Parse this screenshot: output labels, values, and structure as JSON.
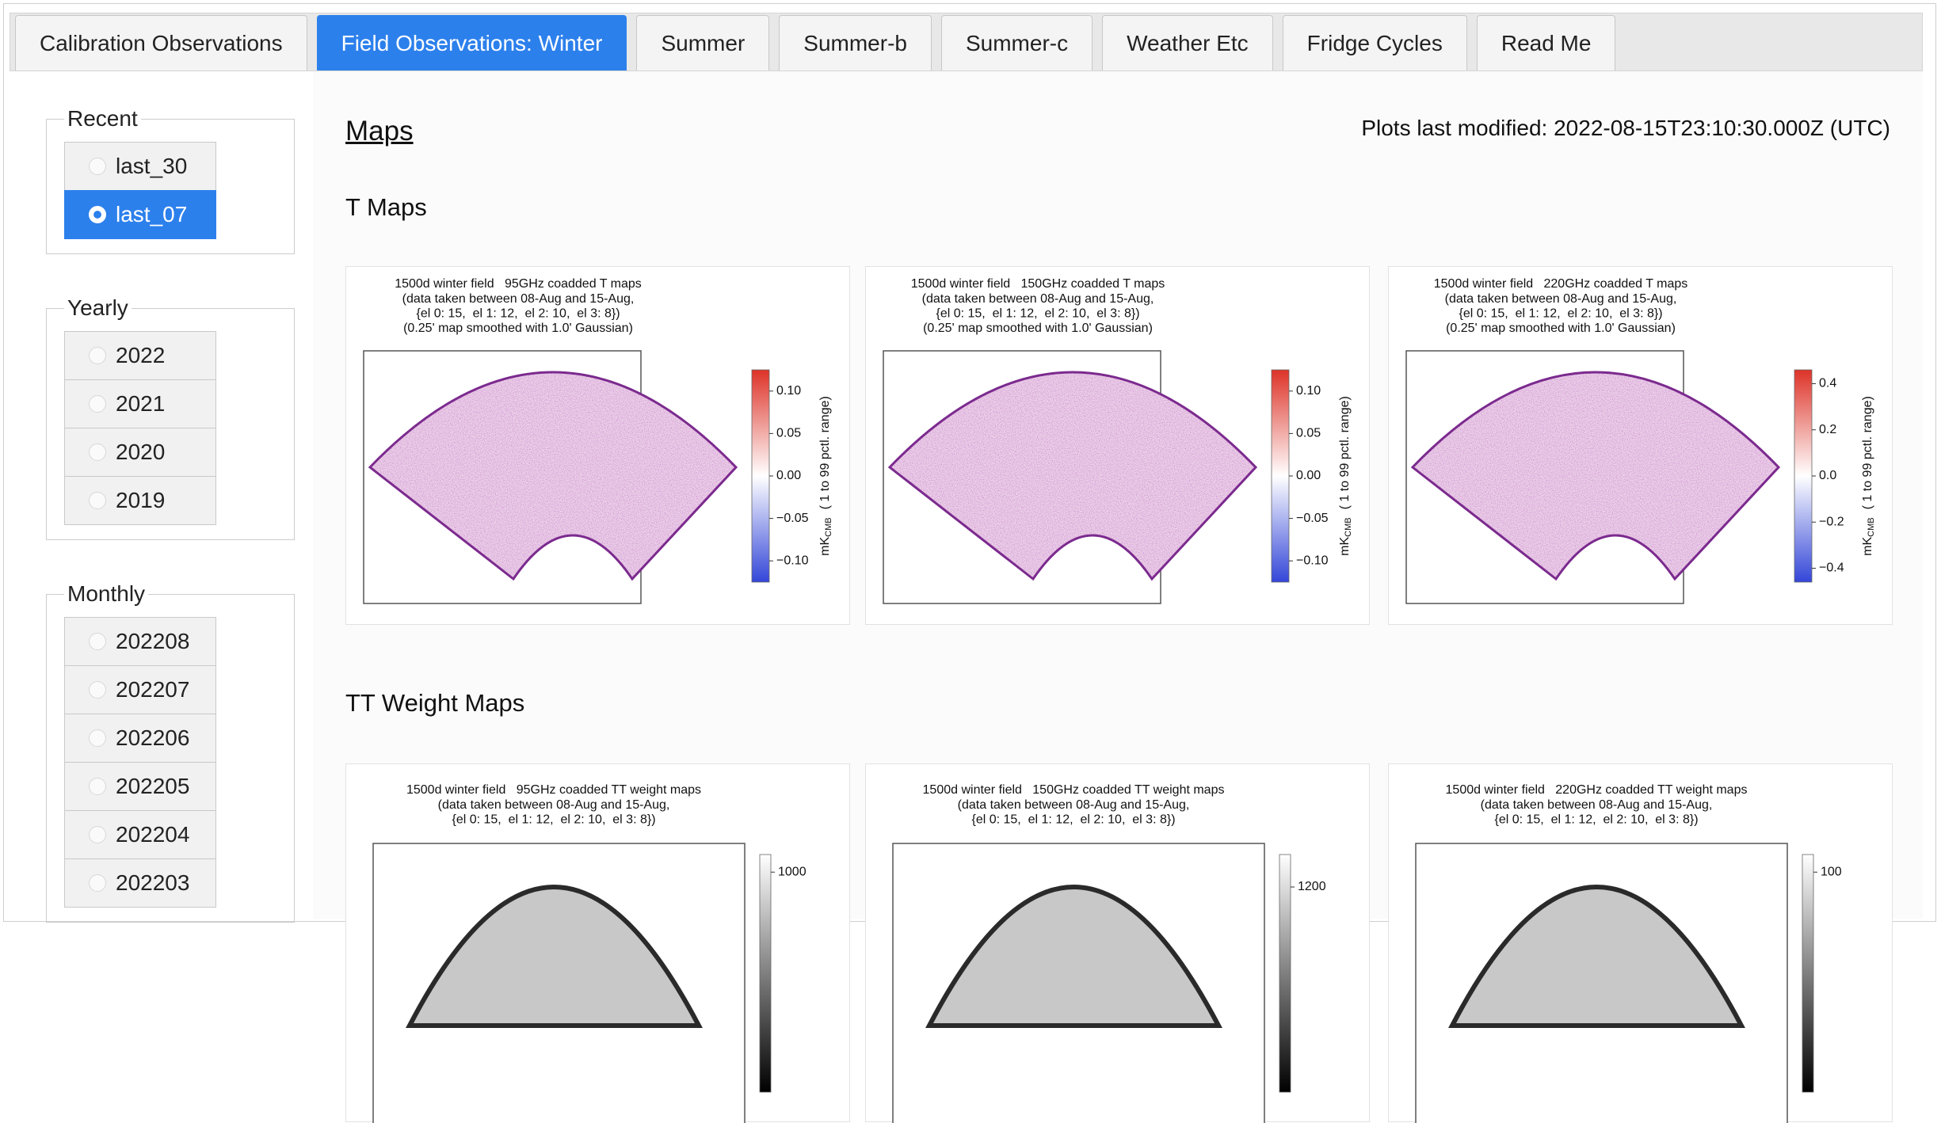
{
  "tabs": {
    "items": [
      "Calibration Observations",
      "Field Observations: Winter",
      "Summer",
      "Summer-b",
      "Summer-c",
      "Weather Etc",
      "Fridge Cycles",
      "Read Me"
    ],
    "active": 1
  },
  "sidebar": {
    "groups": [
      {
        "legend": "Recent",
        "options": [
          "last_30",
          "last_07"
        ],
        "selected": 1
      },
      {
        "legend": "Yearly",
        "options": [
          "2022",
          "2021",
          "2020",
          "2019"
        ]
      },
      {
        "legend": "Monthly",
        "options": [
          "202208",
          "202207",
          "202206",
          "202205",
          "202204",
          "202203"
        ]
      }
    ]
  },
  "main": {
    "title": "Maps",
    "modified": "Plots last modified: 2022-08-15T23:10:30.000Z (UTC)",
    "sections": [
      {
        "heading": "T Maps",
        "kind": "map",
        "plots": [
          {
            "title": [
              "1500d winter field   95GHz coadded T maps",
              "(data taken between 08-Aug and 15-Aug,",
              "{el 0: 15,  el 1: 12,  el 2: 10,  el 3: 8})",
              "(0.25' map smoothed with 1.0' Gaussian)"
            ],
            "colorbar": {
              "clim": [
                -0.125,
                0.125
              ],
              "colors": [
                "#3346d8",
                "#ffffff",
                "#dd3328"
              ],
              "ticks": [
                {
                  "value": 0.1,
                  "label": "0.10"
                },
                {
                  "value": 0.05,
                  "label": "0.05"
                },
                {
                  "value": 0,
                  "label": "0.00"
                },
                {
                  "value": -0.05,
                  "label": "−0.05"
                },
                {
                  "value": -0.1,
                  "label": "−0.10"
                }
              ],
              "label": {
                "unit": "mK",
                "subscript": "CMB",
                "text": "( 1 to 99 pctl. range)"
              }
            }
          },
          {
            "title": [
              "1500d winter field   150GHz coadded T maps",
              "(data taken between 08-Aug and 15-Aug,",
              "{el 0: 15,  el 1: 12,  el 2: 10,  el 3: 8})",
              "(0.25' map smoothed with 1.0' Gaussian)"
            ],
            "colorbar": {
              "clim": [
                -0.125,
                0.125
              ],
              "colors": [
                "#3346d8",
                "#ffffff",
                "#dd3328"
              ],
              "ticks": [
                {
                  "value": 0.1,
                  "label": "0.10"
                },
                {
                  "value": 0.05,
                  "label": "0.05"
                },
                {
                  "value": 0,
                  "label": "0.00"
                },
                {
                  "value": -0.05,
                  "label": "−0.05"
                },
                {
                  "value": -0.1,
                  "label": "−0.10"
                }
              ],
              "label": {
                "unit": "mK",
                "subscript": "CMB",
                "text": "( 1 to 99 pctl. range)"
              }
            }
          },
          {
            "title": [
              "1500d winter field   220GHz coadded T maps",
              "(data taken between 08-Aug and 15-Aug,",
              "{el 0: 15,  el 1: 12,  el 2: 10,  el 3: 8})",
              "(0.25' map smoothed with 1.0' Gaussian)"
            ],
            "colorbar": {
              "clim": [
                -0.46,
                0.46
              ],
              "colors": [
                "#3346d8",
                "#ffffff",
                "#dd3328"
              ],
              "ticks": [
                {
                  "value": 0.4,
                  "label": "0.4"
                },
                {
                  "value": 0.2,
                  "label": "0.2"
                },
                {
                  "value": 0,
                  "label": "0.0"
                },
                {
                  "value": -0.2,
                  "label": "−0.2"
                },
                {
                  "value": -0.4,
                  "label": "−0.4"
                }
              ],
              "label": {
                "unit": "mK",
                "subscript": "CMB",
                "text": "( 1 to 99 pctl. range)"
              }
            }
          }
        ]
      },
      {
        "heading": "TT Weight Maps",
        "kind": "weight",
        "plots": [
          {
            "title": [
              "1500d winter field   95GHz coadded TT weight maps",
              "(data taken between 08-Aug and 15-Aug,",
              "{el 0: 15,  el 1: 12,  el 2: 10,  el 3: 8})"
            ],
            "colorbar": {
              "clim": [
                0,
                1080
              ],
              "colors": [
                "#000000",
                "#ffffff"
              ],
              "ticks": [
                1000
              ]
            }
          },
          {
            "title": [
              "1500d winter field   150GHz coadded TT weight maps",
              "(data taken between 08-Aug and 15-Aug,",
              "{el 0: 15,  el 1: 12,  el 2: 10,  el 3: 8})"
            ],
            "colorbar": {
              "clim": [
                0,
                1390
              ],
              "colors": [
                "#000000",
                "#ffffff"
              ],
              "ticks": [
                1200
              ]
            }
          },
          {
            "title": [
              "1500d winter field   220GHz coadded TT weight maps",
              "(data taken between 08-Aug and 15-Aug,",
              "{el 0: 15,  el 1: 12,  el 2: 10,  el 3: 8})"
            ],
            "colorbar": {
              "clim": [
                0,
                108
              ],
              "colors": [
                "#000000",
                "#ffffff"
              ],
              "ticks": [
                100
              ]
            }
          }
        ]
      }
    ]
  }
}
